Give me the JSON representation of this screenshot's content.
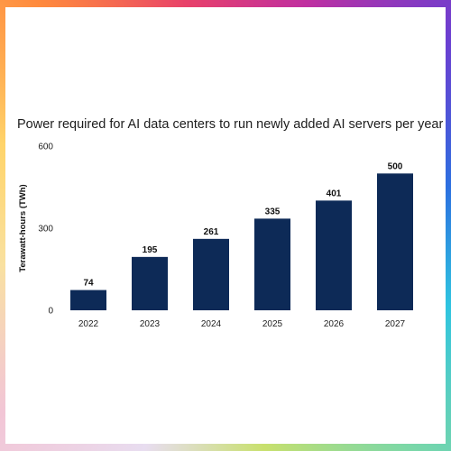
{
  "chart_data": {
    "type": "bar",
    "title": "Power required for AI data centers to run newly added AI servers per year",
    "ylabel": "Terawatt-hours (TWh)",
    "xlabel": "",
    "categories": [
      "2022",
      "2023",
      "2024",
      "2025",
      "2026",
      "2027"
    ],
    "values": [
      74,
      195,
      261,
      335,
      401,
      500
    ],
    "data_labels": [
      "74",
      "195",
      "261",
      "335",
      "401",
      "500"
    ],
    "ylim": [
      0,
      600
    ],
    "yticks": [
      "0",
      "300",
      "600"
    ],
    "grid": false,
    "bar_color": "#0d2a57"
  }
}
